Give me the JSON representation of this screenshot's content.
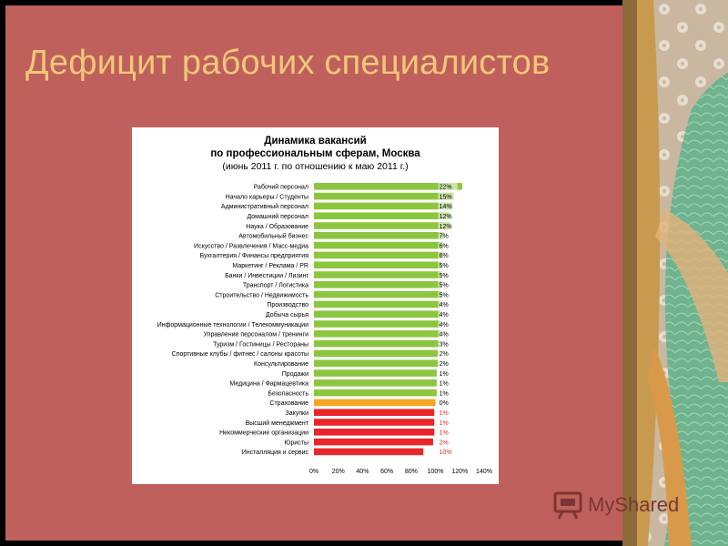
{
  "slide": {
    "title": "Дефицит рабочих специалистов",
    "watermark": "MyShared"
  },
  "colors": {
    "background": "#c0605c",
    "title": "#f0c878",
    "bar_green": "#8cc63f",
    "bar_orange": "#f5a623",
    "bar_red": "#e8262a"
  },
  "chart_data": {
    "type": "bar",
    "orientation": "horizontal",
    "title": "Динамика вакансий",
    "subtitle_line1": "по профессиональным сферам, Москва",
    "subtitle_line2": "(июнь 2011 г. по отношению к маю 2011 г.)",
    "xlim": [
      0,
      140
    ],
    "x_ticks": [
      "0%",
      "20%",
      "40%",
      "60%",
      "80%",
      "100%",
      "120%",
      "140%"
    ],
    "grid": false,
    "categories": [
      "Рабочий персонал",
      "Начало карьеры / Студенты",
      "Административный персонал",
      "Домашний персонал",
      "Наука / Образование",
      "Автомобильный бизнес",
      "Искусство / Развлечения / Масс-медиа",
      "Бухгалтерия / Финансы предприятия",
      "Маркетинг / Реклама / PR",
      "Банки / Инвестиции / Лизинг",
      "Транспорт / Логистика",
      "Строительство / Недвижимость",
      "Производство",
      "Добыча сырья",
      "Информационные технологии / Телекоммуникации",
      "Управление персоналом / тренинги",
      "Туризм / Гостиницы / Рестораны",
      "Спортивные клубы / фитнес / салоны красоты",
      "Консультирование",
      "Продажи",
      "Медицина / Фармацевтика",
      "Безопасность",
      "Страхование",
      "Закупки",
      "Высший менеджмент",
      "Некоммерческие организации",
      "Юристы",
      "Инсталляция и сервис"
    ],
    "values": [
      122,
      115,
      114,
      112,
      112,
      107,
      106,
      106,
      105,
      105,
      105,
      105,
      104,
      104,
      104,
      104,
      103,
      102,
      102,
      101,
      101,
      101,
      100,
      99,
      99,
      99,
      98,
      90
    ],
    "labels": [
      "22%",
      "15%",
      "14%",
      "12%",
      "12%",
      "7%",
      "6%",
      "6%",
      "5%",
      "5%",
      "5%",
      "5%",
      "4%",
      "4%",
      "4%",
      "4%",
      "3%",
      "2%",
      "2%",
      "1%",
      "1%",
      "1%",
      "0%",
      "1%",
      "1%",
      "1%",
      "2%",
      "10%"
    ],
    "bar_colors": [
      "green",
      "green",
      "green",
      "green",
      "green",
      "green",
      "green",
      "green",
      "green",
      "green",
      "green",
      "green",
      "green",
      "green",
      "green",
      "green",
      "green",
      "green",
      "green",
      "green",
      "green",
      "green",
      "orange",
      "red",
      "red",
      "red",
      "red",
      "red"
    ]
  }
}
